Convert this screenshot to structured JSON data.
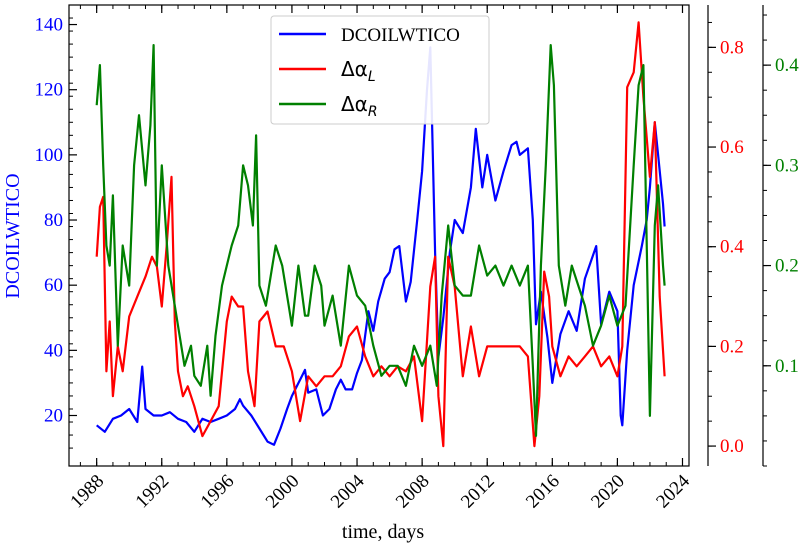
{
  "chart_data": {
    "type": "line",
    "xlabel": "time, days",
    "x_ticks": [
      "1988",
      "1992",
      "1996",
      "2000",
      "2004",
      "2008",
      "2012",
      "2016",
      "2020",
      "2024"
    ],
    "xlim": [
      1986.3,
      2024.4
    ],
    "y_axes": [
      {
        "name": "left",
        "label": "DCOILWTICO",
        "color": "#0000ff",
        "lim": [
          4.5,
          146
        ],
        "ticks": [
          "20",
          "40",
          "60",
          "80",
          "100",
          "120",
          "140"
        ]
      },
      {
        "name": "right1",
        "label": "",
        "color": "#ff0000",
        "lim": [
          -0.04,
          0.885
        ],
        "ticks": [
          "0.0",
          "0.2",
          "0.4",
          "0.6",
          "0.8"
        ]
      },
      {
        "name": "right2",
        "label": "",
        "color": "#008000",
        "lim": [
          0.0,
          0.46
        ],
        "ticks": [
          "0.1",
          "0.2",
          "0.3",
          "0.4"
        ]
      }
    ],
    "legend": {
      "placement": "upper-center",
      "entries": [
        {
          "label": "DCOILWTICO",
          "color": "#0000ff",
          "math": false
        },
        {
          "label": "Δα",
          "sub": "L",
          "color": "#ff0000",
          "math": true
        },
        {
          "label": "Δα",
          "sub": "R",
          "color": "#008000",
          "math": true
        }
      ]
    },
    "series": [
      {
        "name": "DCOILWTICO",
        "axis": "left",
        "color": "#0000ff",
        "x": [
          1988.0,
          1988.5,
          1989.0,
          1989.5,
          1990.0,
          1990.5,
          1990.8,
          1991.0,
          1991.5,
          1992.0,
          1992.5,
          1993.0,
          1993.5,
          1994.0,
          1994.5,
          1995.0,
          1995.5,
          1996.0,
          1996.5,
          1996.8,
          1997.0,
          1997.5,
          1998.0,
          1998.5,
          1998.9,
          1999.3,
          1999.7,
          2000.0,
          2000.5,
          2000.8,
          2001.0,
          2001.5,
          2001.9,
          2002.3,
          2002.7,
          2003.0,
          2003.3,
          2003.7,
          2004.0,
          2004.3,
          2004.7,
          2005.0,
          2005.3,
          2005.7,
          2006.0,
          2006.3,
          2006.6,
          2007.0,
          2007.3,
          2007.7,
          2008.0,
          2008.3,
          2008.5,
          2008.8,
          2009.0,
          2009.3,
          2009.7,
          2010.0,
          2010.5,
          2011.0,
          2011.3,
          2011.7,
          2012.0,
          2012.5,
          2013.0,
          2013.5,
          2013.8,
          2014.0,
          2014.5,
          2014.8,
          2015.0,
          2015.3,
          2015.7,
          2016.0,
          2016.5,
          2017.0,
          2017.5,
          2018.0,
          2018.7,
          2019.0,
          2019.5,
          2020.0,
          2020.2,
          2020.3,
          2020.6,
          2021.0,
          2021.5,
          2021.8,
          2022.0,
          2022.3,
          2022.5,
          2022.8,
          2022.9
        ],
        "values": [
          17,
          15,
          19,
          20,
          22,
          18,
          35,
          22,
          20,
          20,
          21,
          19,
          18,
          15,
          19,
          18,
          19,
          20,
          22,
          25,
          23,
          20,
          16,
          12,
          11,
          16,
          22,
          26,
          31,
          34,
          27,
          28,
          20,
          22,
          28,
          31,
          28,
          28,
          33,
          37,
          52,
          46,
          55,
          62,
          64,
          71,
          72,
          55,
          61,
          80,
          95,
          120,
          133,
          70,
          38,
          50,
          70,
          80,
          76,
          90,
          108,
          90,
          100,
          86,
          95,
          103,
          104,
          100,
          102,
          80,
          48,
          58,
          44,
          30,
          45,
          52,
          46,
          62,
          72,
          48,
          58,
          52,
          20,
          17,
          40,
          60,
          72,
          80,
          90,
          110,
          100,
          85,
          78
        ]
      },
      {
        "name": "Δα_L",
        "axis": "right1",
        "color": "#ff0000",
        "x": [
          1988.0,
          1988.2,
          1988.4,
          1988.6,
          1988.8,
          1989.0,
          1989.3,
          1989.6,
          1990.0,
          1990.5,
          1991.0,
          1991.4,
          1991.7,
          1992.0,
          1992.3,
          1992.6,
          1992.8,
          1993.0,
          1993.3,
          1993.6,
          1994.0,
          1994.5,
          1995.0,
          1995.5,
          1996.0,
          1996.3,
          1996.7,
          1997.0,
          1997.3,
          1997.7,
          1998.0,
          1998.5,
          1999.0,
          1999.5,
          2000.0,
          2000.5,
          2001.0,
          2001.5,
          2002.0,
          2002.5,
          2003.0,
          2003.5,
          2004.0,
          2004.5,
          2005.0,
          2005.5,
          2006.0,
          2006.5,
          2007.0,
          2007.5,
          2008.0,
          2008.5,
          2008.8,
          2009.0,
          2009.3,
          2009.6,
          2010.0,
          2010.5,
          2011.0,
          2011.5,
          2012.0,
          2012.5,
          2013.0,
          2013.5,
          2014.0,
          2014.5,
          2014.9,
          2015.2,
          2015.5,
          2015.8,
          2016.0,
          2016.5,
          2017.0,
          2017.5,
          2018.0,
          2018.5,
          2019.0,
          2019.5,
          2020.0,
          2020.3,
          2020.6,
          2021.0,
          2021.3,
          2021.6,
          2022.0,
          2022.3,
          2022.6,
          2022.9
        ],
        "values": [
          0.38,
          0.48,
          0.5,
          0.15,
          0.25,
          0.1,
          0.2,
          0.15,
          0.26,
          0.3,
          0.34,
          0.38,
          0.36,
          0.28,
          0.4,
          0.54,
          0.25,
          0.15,
          0.1,
          0.12,
          0.08,
          0.02,
          0.05,
          0.08,
          0.25,
          0.3,
          0.28,
          0.28,
          0.15,
          0.08,
          0.25,
          0.27,
          0.2,
          0.2,
          0.15,
          0.05,
          0.14,
          0.12,
          0.14,
          0.14,
          0.16,
          0.22,
          0.24,
          0.18,
          0.14,
          0.16,
          0.14,
          0.16,
          0.15,
          0.18,
          0.05,
          0.32,
          0.38,
          0.1,
          0.0,
          0.38,
          0.32,
          0.14,
          0.24,
          0.14,
          0.2,
          0.2,
          0.2,
          0.2,
          0.2,
          0.18,
          0.0,
          0.1,
          0.35,
          0.3,
          0.2,
          0.14,
          0.18,
          0.16,
          0.18,
          0.2,
          0.16,
          0.18,
          0.14,
          0.2,
          0.72,
          0.75,
          0.85,
          0.7,
          0.54,
          0.65,
          0.3,
          0.14
        ]
      },
      {
        "name": "Δα_R",
        "axis": "right2",
        "color": "#008000",
        "x": [
          1988.0,
          1988.2,
          1988.4,
          1988.6,
          1988.8,
          1989.0,
          1989.3,
          1989.6,
          1990.0,
          1990.3,
          1990.6,
          1991.0,
          1991.3,
          1991.5,
          1991.7,
          1992.0,
          1992.4,
          1992.8,
          1993.0,
          1993.4,
          1993.8,
          1994.0,
          1994.4,
          1994.8,
          1995.0,
          1995.3,
          1995.7,
          1996.0,
          1996.3,
          1996.7,
          1997.0,
          1997.3,
          1997.6,
          1997.8,
          1998.0,
          1998.4,
          1998.8,
          1999.0,
          1999.4,
          1999.8,
          2000.0,
          2000.4,
          2000.8,
          2001.0,
          2001.4,
          2001.8,
          2002.0,
          2002.5,
          2003.0,
          2003.5,
          2004.0,
          2004.5,
          2005.0,
          2005.5,
          2006.0,
          2006.5,
          2007.0,
          2007.5,
          2008.0,
          2008.5,
          2008.9,
          2009.2,
          2009.6,
          2010.0,
          2010.5,
          2011.0,
          2011.5,
          2012.0,
          2012.5,
          2013.0,
          2013.5,
          2014.0,
          2014.5,
          2014.8,
          2015.0,
          2015.3,
          2015.6,
          2015.9,
          2016.1,
          2016.4,
          2016.8,
          2017.2,
          2017.6,
          2018.0,
          2018.5,
          2019.0,
          2019.5,
          2020.0,
          2020.5,
          2021.0,
          2021.3,
          2021.6,
          2022.0,
          2022.3,
          2022.5,
          2022.8,
          2022.9
        ],
        "values": [
          0.36,
          0.4,
          0.3,
          0.22,
          0.2,
          0.27,
          0.12,
          0.22,
          0.18,
          0.3,
          0.35,
          0.28,
          0.34,
          0.42,
          0.2,
          0.3,
          0.2,
          0.16,
          0.14,
          0.1,
          0.12,
          0.09,
          0.08,
          0.12,
          0.07,
          0.13,
          0.18,
          0.2,
          0.22,
          0.24,
          0.3,
          0.28,
          0.24,
          0.33,
          0.18,
          0.16,
          0.2,
          0.22,
          0.2,
          0.16,
          0.14,
          0.2,
          0.15,
          0.15,
          0.2,
          0.18,
          0.14,
          0.17,
          0.12,
          0.2,
          0.17,
          0.16,
          0.12,
          0.09,
          0.1,
          0.1,
          0.08,
          0.12,
          0.1,
          0.12,
          0.08,
          0.17,
          0.24,
          0.18,
          0.17,
          0.17,
          0.22,
          0.19,
          0.2,
          0.18,
          0.2,
          0.18,
          0.2,
          0.1,
          0.03,
          0.2,
          0.3,
          0.42,
          0.38,
          0.2,
          0.16,
          0.2,
          0.18,
          0.16,
          0.12,
          0.14,
          0.17,
          0.14,
          0.16,
          0.3,
          0.38,
          0.4,
          0.05,
          0.24,
          0.28,
          0.2,
          0.18
        ]
      }
    ]
  }
}
